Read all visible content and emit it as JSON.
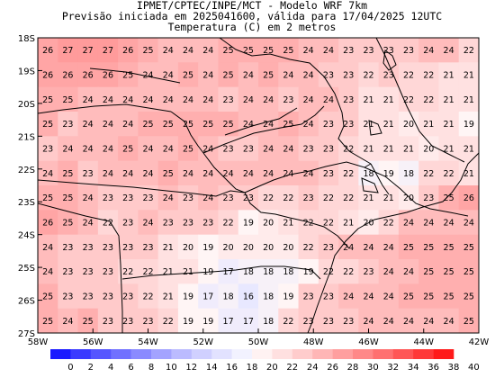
{
  "header": {
    "line1": "IPMET/CPTEC/INPE/MCT - Modelo WRF 7km",
    "line2": "Previsão iniciada em 2025041600, válida para 17/04/2025 12UTC",
    "line3": "Temperatura (C) em 2 metros"
  },
  "map": {
    "lat_labels": [
      "18S",
      "19S",
      "20S",
      "21S",
      "22S",
      "23S",
      "24S",
      "25S",
      "26S",
      "27S"
    ],
    "lon_labels": [
      "58W",
      "56W",
      "54W",
      "52W",
      "50W",
      "48W",
      "46W",
      "44W",
      "42W"
    ],
    "lon_range": [
      -58,
      -42
    ],
    "lat_range": [
      -27,
      -18
    ],
    "values": [
      [
        26,
        27,
        27,
        27,
        26,
        25,
        24,
        24,
        24,
        25,
        25,
        25,
        25,
        24,
        24,
        23,
        23,
        23,
        23,
        24,
        24,
        22
      ],
      [
        26,
        26,
        26,
        26,
        25,
        24,
        24,
        25,
        24,
        25,
        24,
        25,
        24,
        24,
        23,
        23,
        22,
        23,
        22,
        22,
        21,
        21
      ],
      [
        25,
        25,
        24,
        24,
        24,
        24,
        24,
        24,
        24,
        23,
        24,
        24,
        23,
        24,
        24,
        23,
        21,
        21,
        22,
        22,
        21,
        21
      ],
      [
        25,
        23,
        24,
        24,
        24,
        25,
        25,
        25,
        25,
        25,
        24,
        24,
        25,
        24,
        23,
        23,
        21,
        21,
        20,
        21,
        21,
        19
      ],
      [
        23,
        24,
        24,
        24,
        25,
        24,
        24,
        25,
        24,
        23,
        23,
        24,
        24,
        23,
        23,
        22,
        21,
        21,
        21,
        20,
        21,
        21
      ],
      [
        24,
        25,
        23,
        24,
        24,
        24,
        25,
        24,
        24,
        24,
        24,
        24,
        24,
        24,
        23,
        22,
        18,
        19,
        18,
        22,
        22,
        21
      ],
      [
        25,
        25,
        24,
        23,
        23,
        23,
        24,
        23,
        24,
        23,
        23,
        22,
        22,
        23,
        22,
        22,
        21,
        21,
        20,
        23,
        25,
        26
      ],
      [
        26,
        25,
        24,
        22,
        23,
        24,
        23,
        23,
        23,
        22,
        19,
        20,
        21,
        22,
        22,
        21,
        20,
        22,
        24,
        24,
        24,
        24
      ],
      [
        24,
        23,
        23,
        23,
        23,
        23,
        21,
        20,
        19,
        20,
        20,
        20,
        20,
        22,
        23,
        24,
        24,
        24,
        25,
        25,
        25,
        25
      ],
      [
        24,
        23,
        23,
        23,
        22,
        22,
        21,
        21,
        19,
        17,
        18,
        18,
        18,
        19,
        22,
        22,
        23,
        24,
        24,
        25,
        25,
        25
      ],
      [
        25,
        23,
        23,
        23,
        23,
        22,
        21,
        19,
        17,
        18,
        16,
        18,
        19,
        23,
        23,
        24,
        24,
        24,
        25,
        25,
        25,
        25
      ],
      [
        25,
        24,
        25,
        23,
        23,
        23,
        22,
        19,
        19,
        17,
        17,
        18,
        22,
        23,
        23,
        23,
        24,
        24,
        24,
        24,
        24,
        25
      ]
    ]
  },
  "colorbar": {
    "ticks": [
      "0",
      "2",
      "4",
      "6",
      "8",
      "10",
      "12",
      "14",
      "16",
      "18",
      "20",
      "22",
      "24",
      "26",
      "28",
      "30",
      "32",
      "34",
      "36",
      "38",
      "40"
    ],
    "colors": [
      "#1a1aff",
      "#3a3aff",
      "#5555ff",
      "#7070ff",
      "#8a8aff",
      "#a3a3ff",
      "#bbbbff",
      "#d0d0ff",
      "#e2e2ff",
      "#f2f2ff",
      "#fff2f2",
      "#ffe0e0",
      "#ffcccc",
      "#ffb6b6",
      "#ff9f9f",
      "#ff8888",
      "#ff7070",
      "#ff5555",
      "#ff3838",
      "#ff1a1a"
    ]
  }
}
